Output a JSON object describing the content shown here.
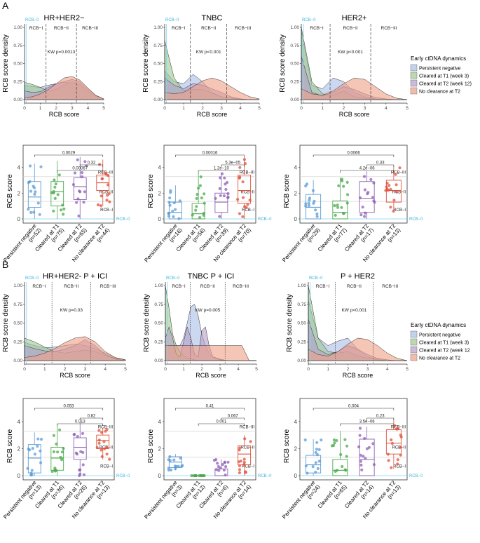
{
  "panel_labels": [
    "A",
    "B"
  ],
  "legend": {
    "title": "Early ctDNA dynamics",
    "items": [
      {
        "label": "Persistent negative",
        "color": "#aabde6"
      },
      {
        "label": "Cleared at T1 (week 3)",
        "color": "#9cc98f"
      },
      {
        "label": "Cleared at T2 (week 12)",
        "color": "#b59ec9"
      },
      {
        "label": "No clearance at T2",
        "color": "#ee9f86"
      }
    ],
    "items_b": [
      "Persistent negative",
      "Cleared at T1 (week 3)",
      "Cleared at T2  (week 12",
      "No clearance at T2"
    ]
  },
  "group_colors": [
    "#5b9bd5",
    "#4aa84a",
    "#8e5fb5",
    "#e0503a"
  ],
  "rcb_labels": {
    "rcb0": "RCB−0",
    "rcb1": "RCB−I",
    "rcb2": "RCB−II",
    "rcb3": "RCB−III"
  },
  "density_axis": {
    "ylabel": "RCB score density",
    "xlabel": "RCB score",
    "x_ticks": [
      "0",
      "1",
      "2",
      "3",
      "4",
      "5"
    ],
    "y_ticks": [
      "0.00",
      "0.25",
      "0.50",
      "0.75",
      "1.00"
    ]
  },
  "box_axis": {
    "ylabel": "RCB score",
    "y_ticks": [
      "0",
      "2",
      "4"
    ]
  },
  "chart_data": [
    {
      "type": "area",
      "title": "HR+HER2−",
      "annotation": "KW  p=0.0013",
      "xlim": [
        0,
        5
      ],
      "ylim": [
        0,
        1
      ],
      "thresholds": [
        1.36,
        3.28
      ],
      "x": [
        0,
        0.5,
        1,
        1.5,
        2,
        2.5,
        3,
        3.5,
        4,
        4.5,
        5
      ],
      "series": [
        {
          "name": "Persistent negative",
          "values": [
            0.2,
            0.18,
            0.17,
            0.2,
            0.22,
            0.24,
            0.23,
            0.2,
            0.12,
            0.05,
            0.01
          ]
        },
        {
          "name": "Cleared at T1 (week 3)",
          "values": [
            0.24,
            0.21,
            0.17,
            0.12,
            0.14,
            0.2,
            0.25,
            0.22,
            0.12,
            0.05,
            0.01
          ]
        },
        {
          "name": "Cleared at T2 (week 12)",
          "values": [
            0.12,
            0.1,
            0.11,
            0.17,
            0.22,
            0.25,
            0.28,
            0.25,
            0.15,
            0.06,
            0.01
          ]
        },
        {
          "name": "No clearance at T2",
          "values": [
            0.03,
            0.04,
            0.08,
            0.14,
            0.22,
            0.3,
            0.32,
            0.27,
            0.16,
            0.06,
            0.01
          ]
        }
      ]
    },
    {
      "type": "area",
      "title": "TNBC",
      "annotation": "KW  p<0.001",
      "xlim": [
        0,
        5
      ],
      "ylim": [
        0,
        1
      ],
      "thresholds": [
        1.36,
        3.28
      ],
      "x": [
        0,
        0.5,
        1,
        1.5,
        2,
        2.5,
        3,
        3.5,
        4,
        4.5,
        5
      ],
      "series": [
        {
          "name": "Persistent negative",
          "values": [
            0.4,
            0.25,
            0.22,
            0.35,
            0.25,
            0.1,
            0.04,
            0.02,
            0.01,
            0.0,
            0.0
          ]
        },
        {
          "name": "Cleared at T1 (week 3)",
          "values": [
            0.82,
            0.3,
            0.12,
            0.14,
            0.14,
            0.09,
            0.04,
            0.02,
            0.0,
            0.0,
            0.0
          ]
        },
        {
          "name": "Cleared at T2 (week 12)",
          "values": [
            0.3,
            0.2,
            0.15,
            0.22,
            0.2,
            0.15,
            0.1,
            0.04,
            0.01,
            0.0,
            0.0
          ]
        },
        {
          "name": "No clearance at T2",
          "values": [
            0.1,
            0.08,
            0.1,
            0.18,
            0.26,
            0.3,
            0.26,
            0.18,
            0.1,
            0.04,
            0.01
          ]
        }
      ]
    },
    {
      "type": "area",
      "title": "HER2+",
      "annotation": "KW  p<0.001",
      "xlim": [
        0,
        5
      ],
      "ylim": [
        0,
        1
      ],
      "thresholds": [
        1.36,
        3.28
      ],
      "x": [
        0,
        0.5,
        1,
        1.5,
        2,
        2.5,
        3,
        3.5,
        4,
        4.5,
        5
      ],
      "series": [
        {
          "name": "Persistent negative",
          "values": [
            0.95,
            0.2,
            0.15,
            0.3,
            0.25,
            0.1,
            0.04,
            0.01,
            0.0,
            0.0,
            0.0
          ]
        },
        {
          "name": "Cleared at T1 (week 3)",
          "values": [
            1.0,
            0.25,
            0.08,
            0.06,
            0.12,
            0.04,
            0.02,
            0.01,
            0.0,
            0.0,
            0.0
          ]
        },
        {
          "name": "Cleared at T2 (week 12)",
          "values": [
            0.6,
            0.1,
            0.05,
            0.1,
            0.18,
            0.14,
            0.08,
            0.03,
            0.01,
            0.0,
            0.0
          ]
        },
        {
          "name": "No clearance at T2",
          "values": [
            0.15,
            0.08,
            0.06,
            0.12,
            0.22,
            0.3,
            0.28,
            0.18,
            0.08,
            0.02,
            0.0
          ]
        }
      ]
    },
    {
      "type": "area",
      "title": "HR+HER2- P + ICI",
      "annotation": "KW  p=0.03",
      "xlim": [
        0,
        5
      ],
      "ylim": [
        0,
        1
      ],
      "thresholds": [
        1.36,
        3.28
      ],
      "x": [
        0,
        0.5,
        1,
        1.5,
        2,
        2.5,
        3,
        3.5,
        4,
        4.5,
        5
      ],
      "series": [
        {
          "name": "Persistent negative",
          "values": [
            0.24,
            0.2,
            0.17,
            0.18,
            0.2,
            0.22,
            0.2,
            0.16,
            0.1,
            0.04,
            0.01
          ]
        },
        {
          "name": "Cleared at T1 (week 3)",
          "values": [
            0.3,
            0.25,
            0.18,
            0.12,
            0.1,
            0.12,
            0.14,
            0.12,
            0.07,
            0.03,
            0.01
          ]
        },
        {
          "name": "Cleared at T2 (week 12)",
          "values": [
            0.2,
            0.16,
            0.13,
            0.12,
            0.15,
            0.2,
            0.28,
            0.2,
            0.08,
            0.02,
            0.0
          ]
        },
        {
          "name": "No clearance at T2",
          "values": [
            0.04,
            0.06,
            0.1,
            0.16,
            0.24,
            0.3,
            0.32,
            0.25,
            0.12,
            0.04,
            0.01
          ]
        }
      ]
    },
    {
      "type": "area",
      "title": "TNBC P + ICI",
      "annotation": "KW  p=0.005",
      "xlim": [
        0,
        5
      ],
      "ylim": [
        0,
        1
      ],
      "thresholds": [
        1.36,
        3.28
      ],
      "x": [
        0,
        0.2,
        0.4,
        0.6,
        0.8,
        1.0,
        1.2,
        1.4,
        1.6,
        1.8,
        2.0,
        2.2,
        2.4,
        2.6,
        3.0,
        3.4,
        3.8,
        4.2,
        4.6,
        5.0
      ],
      "series": [
        {
          "name": "Persistent negative",
          "values": [
            0.2,
            0.2,
            0.2,
            0.2,
            0.2,
            0.3,
            0.5,
            0.72,
            0.75,
            0.6,
            0.35,
            0.2,
            0.1,
            0.05,
            0.02,
            0.0,
            0.0,
            0.0,
            0.0,
            0.0
          ]
        },
        {
          "name": "Cleared at T1 (week 3)",
          "values": [
            1.0,
            0.7,
            0.35,
            0.2,
            0.12,
            0.07,
            0.03,
            0.02,
            0.01,
            0.0,
            0.0,
            0.0,
            0.0,
            0.0,
            0.0,
            0.0,
            0.0,
            0.0,
            0.0,
            0.0
          ]
        },
        {
          "name": "Cleared at T2 (week 12)",
          "values": [
            0.3,
            0.45,
            0.3,
            0.08,
            0.05,
            0.25,
            0.45,
            0.3,
            0.08,
            0.05,
            0.4,
            0.45,
            0.2,
            0.05,
            0.01,
            0.0,
            0.0,
            0.0,
            0.0,
            0.0
          ]
        },
        {
          "name": "No clearance at T2",
          "values": [
            0.2,
            0.2,
            0.2,
            0.2,
            0.2,
            0.2,
            0.2,
            0.2,
            0.2,
            0.2,
            0.2,
            0.2,
            0.2,
            0.2,
            0.2,
            0.2,
            0.2,
            0.2,
            0.0,
            0.0
          ]
        }
      ]
    },
    {
      "type": "area",
      "title": "P + HER2",
      "annotation": "KW  p<0.001",
      "xlim": [
        0,
        5
      ],
      "ylim": [
        0,
        1
      ],
      "thresholds": [
        1.36,
        3.28
      ],
      "x": [
        0,
        0.5,
        1,
        1.5,
        2,
        2.5,
        3,
        3.5,
        4,
        4.5,
        5
      ],
      "series": [
        {
          "name": "Persistent negative",
          "values": [
            0.8,
            0.3,
            0.2,
            0.26,
            0.3,
            0.15,
            0.05,
            0.02,
            0.0,
            0.0,
            0.0
          ]
        },
        {
          "name": "Cleared at T1 (week 3)",
          "values": [
            1.0,
            0.3,
            0.12,
            0.1,
            0.12,
            0.06,
            0.03,
            0.01,
            0.0,
            0.0,
            0.0
          ]
        },
        {
          "name": "Cleared at T2 (week 12)",
          "values": [
            0.55,
            0.15,
            0.08,
            0.12,
            0.2,
            0.15,
            0.08,
            0.03,
            0.01,
            0.0,
            0.0
          ]
        },
        {
          "name": "No clearance at T2",
          "values": [
            0.15,
            0.08,
            0.06,
            0.12,
            0.22,
            0.3,
            0.28,
            0.2,
            0.1,
            0.03,
            0.0
          ]
        }
      ]
    },
    {
      "type": "box",
      "panel": "HR+HER2−",
      "ylim": [
        0,
        5.5
      ],
      "rcb_lines": [
        1.36,
        3.28
      ],
      "categories": [
        "Persistent negative\n(n=52)",
        "Cleared at T1\n(n=75)",
        "Cleared at T2\n(n=65)",
        "No clearance at T2\n(n=44)"
      ],
      "quartiles": [
        [
          0,
          0.9,
          1.7,
          2.9,
          4.3
        ],
        [
          0,
          1.0,
          2.1,
          2.9,
          4.5
        ],
        [
          0,
          1.5,
          2.5,
          3.2,
          4.8
        ],
        [
          1.0,
          2.2,
          2.8,
          3.4,
          4.6
        ]
      ],
      "comparisons": [
        {
          "label": "0.0029",
          "from": 0,
          "to": 3
        },
        {
          "label": "0.32",
          "from": 2,
          "to": 3
        },
        {
          "label": "0.00067",
          "from": 1,
          "to": 3
        }
      ]
    },
    {
      "type": "box",
      "panel": "TNBC",
      "ylim": [
        0,
        5.5
      ],
      "rcb_lines": [
        1.36,
        3.28
      ],
      "categories": [
        "Persistent negative\n(n=16)",
        "Cleared at T1\n(n=56)",
        "Cleared at T2\n(n=39)",
        "No clearance at T2\n(n=70)"
      ],
      "quartiles": [
        [
          0,
          0,
          0.5,
          1.3,
          2.6
        ],
        [
          0,
          0,
          0.4,
          1.2,
          3.6
        ],
        [
          0,
          0.5,
          1.3,
          2.0,
          3.6
        ],
        [
          0,
          1.2,
          2.2,
          3.4,
          4.8
        ]
      ],
      "comparisons": [
        {
          "label": "0.00016",
          "from": 0,
          "to": 3
        },
        {
          "label": "5.3e−05",
          "from": 2,
          "to": 3
        },
        {
          "label": "1.2e−10",
          "from": 1,
          "to": 3
        }
      ]
    },
    {
      "type": "box",
      "panel": "HER2+",
      "ylim": [
        0,
        5.5
      ],
      "rcb_lines": [
        1.36,
        3.28
      ],
      "categories": [
        "Persistent negative\n(n=29)",
        "Cleared at T1\n(n=77)",
        "Cleared at T2\n(n=17)",
        "No clearance at T2\n(n=13)"
      ],
      "quartiles": [
        [
          0,
          0,
          0.9,
          1.9,
          3.0
        ],
        [
          0,
          0,
          0.5,
          1.4,
          3.2
        ],
        [
          0,
          0.5,
          1.6,
          2.9,
          3.7
        ],
        [
          0.6,
          1.3,
          2.2,
          3.0,
          4.1
        ]
      ],
      "comparisons": [
        {
          "label": "0.0066",
          "from": 0,
          "to": 3
        },
        {
          "label": "0.33",
          "from": 2,
          "to": 3
        },
        {
          "label": "4.2e−06",
          "from": 1,
          "to": 3
        }
      ]
    },
    {
      "type": "box",
      "panel": "HR+HER2- P + ICI",
      "ylim": [
        0,
        5.5
      ],
      "rcb_lines": [
        1.36,
        3.28
      ],
      "categories": [
        "Persistent negative\n(n=13)",
        "Cleared at T1\n(n=36)",
        "Cleared at T2\n(n=26)",
        "No clearance at T2\n(n=13)"
      ],
      "quartiles": [
        [
          0,
          0.2,
          1.3,
          2.3,
          3.2
        ],
        [
          0,
          0.4,
          1.3,
          2.1,
          3.8
        ],
        [
          0,
          1.2,
          2.1,
          2.8,
          4.0
        ],
        [
          1.2,
          2.0,
          2.6,
          3.0,
          3.5
        ]
      ],
      "comparisons": [
        {
          "label": "0.053",
          "from": 0,
          "to": 3
        },
        {
          "label": "0.82",
          "from": 2,
          "to": 3
        },
        {
          "label": "0.013",
          "from": 1,
          "to": 3
        }
      ]
    },
    {
      "type": "box",
      "panel": "TNBC P + ICI",
      "ylim": [
        0,
        5.5
      ],
      "rcb_lines": [
        1.36,
        3.28
      ],
      "categories": [
        "Persistent negative\n(n=3)",
        "Cleared at T1\n(n=12)",
        "Cleared at T2\n(n=6)",
        "No clearance at T2\n(n=14)"
      ],
      "quartiles": [
        [
          0.4,
          0.6,
          1.0,
          1.4,
          1.6
        ],
        [
          0,
          0,
          0,
          0,
          0
        ],
        [
          0,
          0,
          0,
          0.5,
          1.2
        ],
        [
          0,
          0.8,
          1.6,
          2.2,
          3.0
        ]
      ],
      "comparisons": [
        {
          "label": "0.41",
          "from": 0,
          "to": 3
        },
        {
          "label": "0.067",
          "from": 2,
          "to": 3
        },
        {
          "label": "0.001",
          "from": 1,
          "to": 3
        }
      ]
    },
    {
      "type": "box",
      "panel": "P + HER2",
      "ylim": [
        0,
        5.5
      ],
      "rcb_lines": [
        1.36,
        3.28
      ],
      "categories": [
        "Persistent negative\n(n=24)",
        "Cleared at T1\n(n=65)",
        "Cleared at T2\n(n=14)",
        "No clearance at T2\n(n=13)"
      ],
      "quartiles": [
        [
          0,
          0.2,
          0.8,
          1.5,
          2.7
        ],
        [
          0,
          0,
          0.4,
          1.2,
          3.3
        ],
        [
          0,
          0,
          1.2,
          2.7,
          3.6
        ],
        [
          0.5,
          1.6,
          2.4,
          3.4,
          4.2
        ]
      ],
      "comparisons": [
        {
          "label": "0.004",
          "from": 0,
          "to": 3
        },
        {
          "label": "0.23",
          "from": 2,
          "to": 3
        },
        {
          "label": "3.5e−06",
          "from": 1,
          "to": 3
        }
      ]
    }
  ]
}
